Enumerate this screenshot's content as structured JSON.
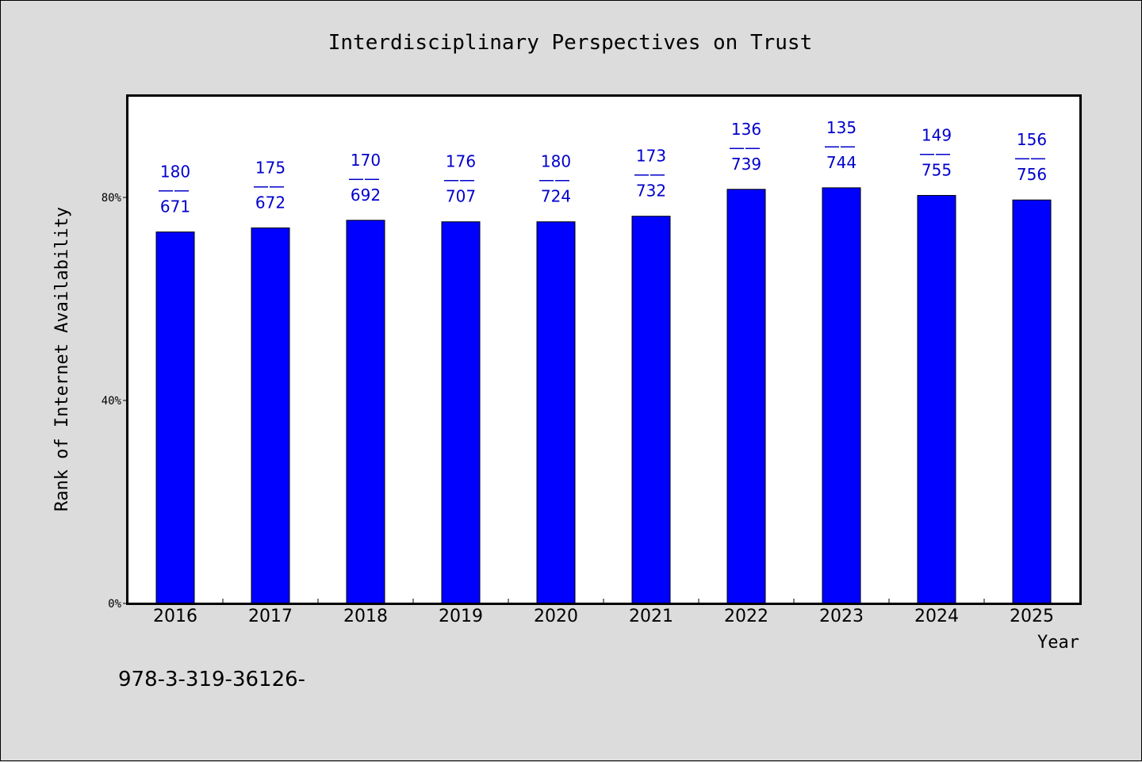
{
  "chart_data": {
    "type": "bar",
    "title": "Interdisciplinary Perspectives on Trust",
    "xlabel": "Year",
    "ylabel": "Rank of Internet Availability",
    "categories": [
      "2016",
      "2017",
      "2018",
      "2019",
      "2020",
      "2021",
      "2022",
      "2023",
      "2024",
      "2025"
    ],
    "values": [
      73.2,
      74.0,
      75.5,
      75.2,
      75.2,
      76.3,
      81.6,
      81.9,
      80.4,
      79.5
    ],
    "data_labels": [
      {
        "top": "180",
        "sep": "——",
        "bottom": "671"
      },
      {
        "top": "175",
        "sep": "——",
        "bottom": "672"
      },
      {
        "top": "170",
        "sep": "——",
        "bottom": "692"
      },
      {
        "top": "176",
        "sep": "——",
        "bottom": "707"
      },
      {
        "top": "180",
        "sep": "——",
        "bottom": "724"
      },
      {
        "top": "173",
        "sep": "——",
        "bottom": "732"
      },
      {
        "top": "136",
        "sep": "——",
        "bottom": "739"
      },
      {
        "top": "135",
        "sep": "——",
        "bottom": "744"
      },
      {
        "top": "149",
        "sep": "——",
        "bottom": "755"
      },
      {
        "top": "156",
        "sep": "——",
        "bottom": "756"
      }
    ],
    "yticks": [
      0,
      40,
      80
    ],
    "ytick_labels": [
      "0%",
      "40%",
      "80%"
    ],
    "ylim": [
      0,
      100
    ],
    "grid": false,
    "legend": "none",
    "bar_color": "#0000ff",
    "label_color": "#0000cc"
  },
  "footer": {
    "text": "978-3-319-36126-"
  }
}
